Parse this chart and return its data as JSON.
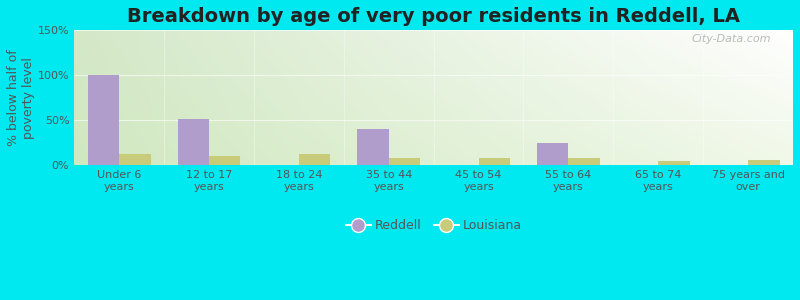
{
  "title": "Breakdown by age of very poor residents in Reddell, LA",
  "ylabel": "% below half of\npoverty level",
  "categories": [
    "Under 6\nyears",
    "12 to 17\nyears",
    "18 to 24\nyears",
    "35 to 44\nyears",
    "45 to 54\nyears",
    "55 to 64\nyears",
    "65 to 74\nyears",
    "75 years and\nover"
  ],
  "reddell_values": [
    100,
    52,
    0,
    40,
    0,
    25,
    0,
    0
  ],
  "louisiana_values": [
    13,
    10,
    13,
    8,
    8,
    8,
    5,
    6
  ],
  "reddell_color": "#b09dcc",
  "louisiana_color": "#c8cc7a",
  "ylim": [
    0,
    150
  ],
  "yticks": [
    0,
    50,
    100,
    150
  ],
  "ytick_labels": [
    "0%",
    "50%",
    "100%",
    "150%"
  ],
  "bar_width": 0.35,
  "title_fontsize": 14,
  "axis_label_fontsize": 9,
  "tick_fontsize": 8,
  "legend_labels": [
    "Reddell",
    "Louisiana"
  ],
  "watermark": "City-Data.com",
  "fig_facecolor": "#00e8f0",
  "gradient_top_left": "#d4e8c8",
  "gradient_top_right": "#ffffff",
  "gradient_bottom_left": "#e8f4d8",
  "gradient_bottom_right": "#f8fdf8"
}
